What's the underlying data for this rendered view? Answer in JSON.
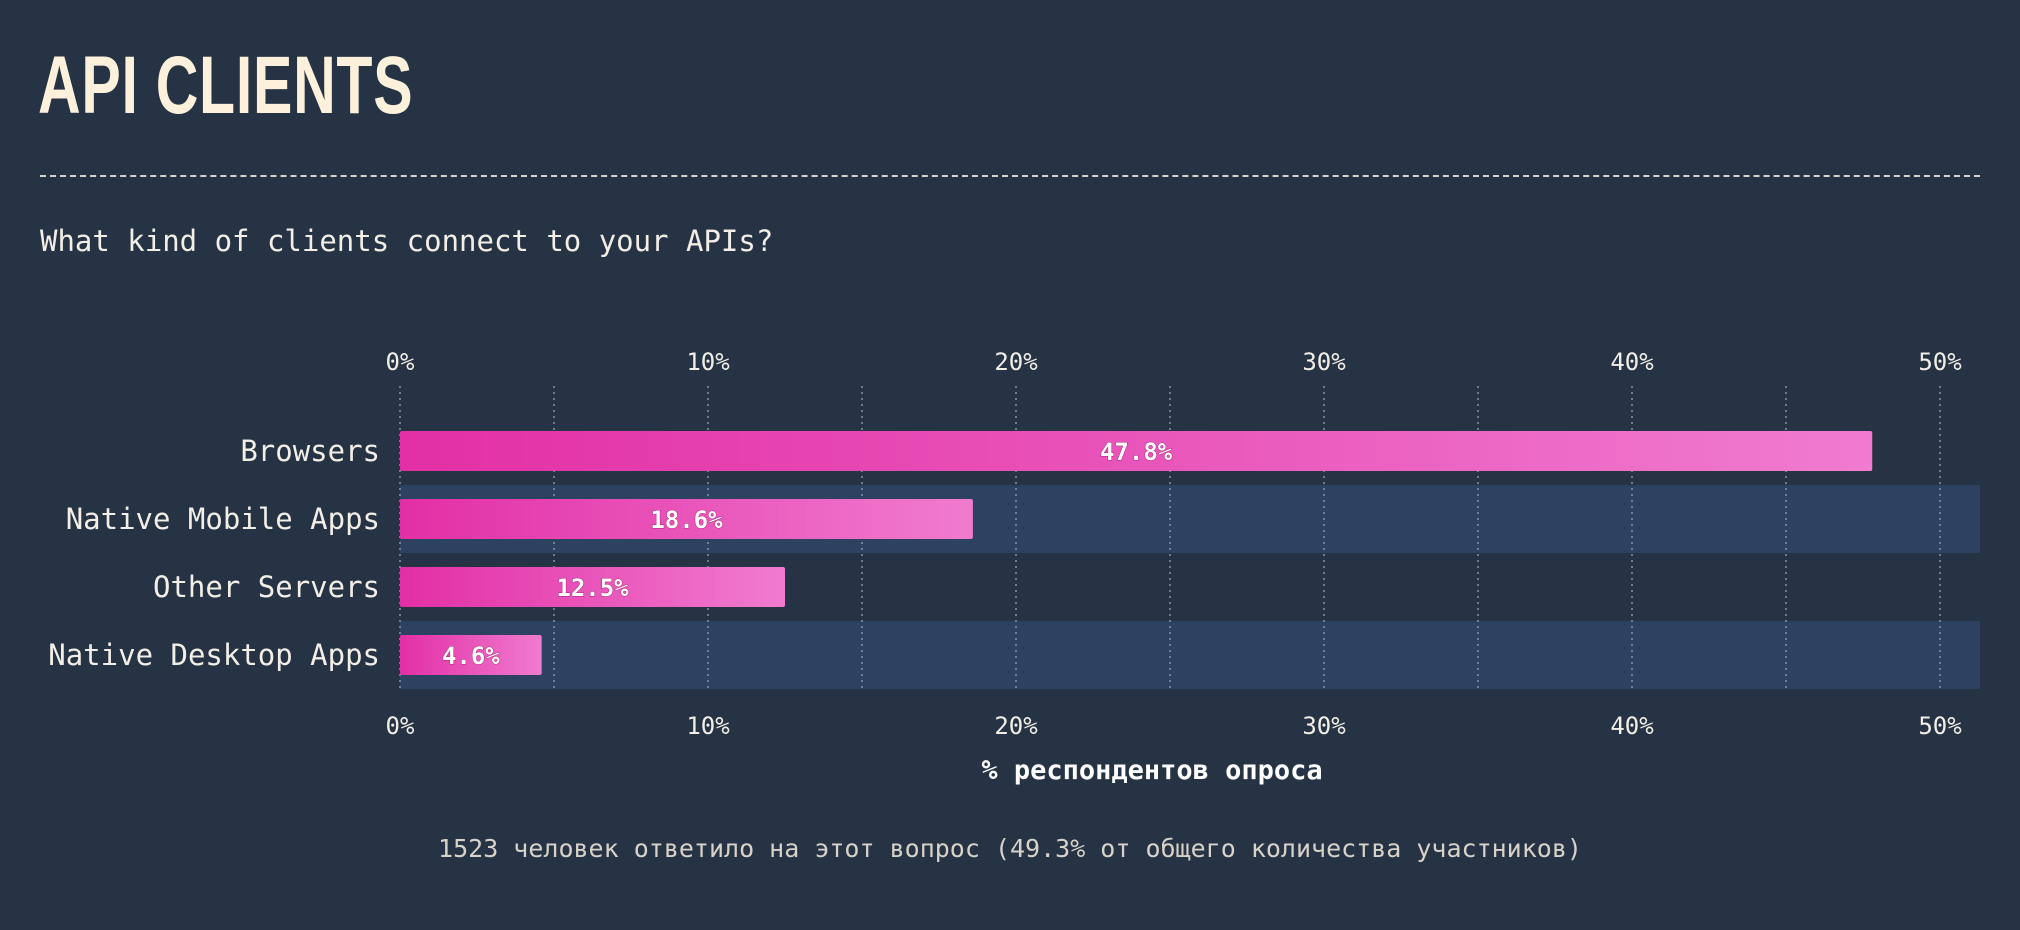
{
  "title": "API CLIENTS",
  "question": "What kind of clients connect to your APIs?",
  "footnote": "1523 человек ответило на этот вопрос (49.3% от общего количества участников)",
  "colors": {
    "background": "#263344",
    "band": "#2C4260",
    "bar_start": "#E22FA5",
    "bar_end": "#F07BCF",
    "text": "#F3EEE6",
    "title": "#FDF1DC",
    "grid": "#8995A6"
  },
  "chart_data": {
    "type": "bar",
    "orientation": "horizontal",
    "categories": [
      "Browsers",
      "Native Mobile Apps",
      "Other Servers",
      "Native Desktop Apps"
    ],
    "values": [
      47.8,
      18.6,
      12.5,
      4.6
    ],
    "value_labels": [
      "47.8%",
      "18.6%",
      "12.5%",
      "4.6%"
    ],
    "xlabel": "% респондентов опроса",
    "ylabel": "",
    "xlim": [
      0,
      51.3
    ],
    "ticks": [
      0,
      10,
      20,
      30,
      40,
      50
    ],
    "tick_labels": [
      "0%",
      "10%",
      "20%",
      "30%",
      "40%",
      "50%"
    ],
    "minor_gridlines": [
      5,
      15,
      25,
      35,
      45
    ],
    "alternating_row_bands": true,
    "axis_labels_position": "top and bottom"
  }
}
